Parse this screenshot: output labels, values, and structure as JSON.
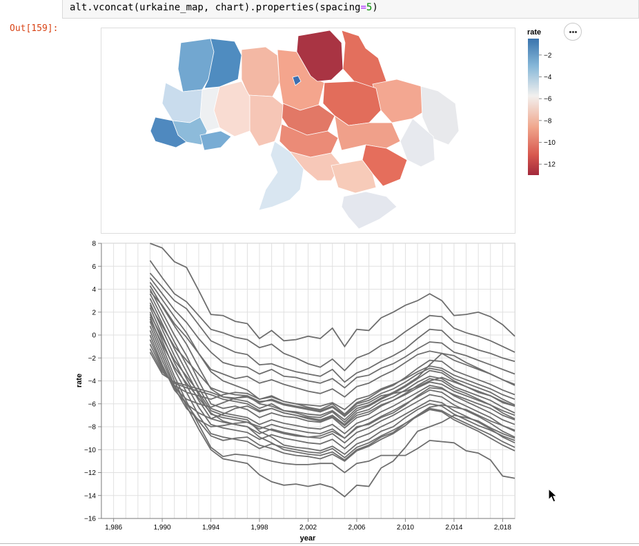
{
  "cell": {
    "code_fn": "alt.vconcat(urkaine_map, chart).properties(spacing",
    "code_eq": "=",
    "code_num": "5",
    "code_end": ")",
    "out_prompt": "Out[159]:"
  },
  "menu": {
    "icon": "ellipsis-icon"
  },
  "colors": {
    "line": "#6e6e6e",
    "grid": "#e0e0e0",
    "axis": "#888888",
    "scale_low": "#a2293b",
    "scale_mid": "#f2f0ee",
    "scale_high": "#3a74ad"
  },
  "map_data": {
    "legend_title": "rate",
    "legend_ticks": [
      "−2",
      "−4",
      "−6",
      "−8",
      "−10",
      "−12"
    ],
    "legend_values": [
      -2,
      -4,
      -6,
      -8,
      -10,
      -12
    ],
    "domain": [
      -13,
      -0.5
    ]
  },
  "chart_data": {
    "type": "line",
    "xlabel": "year",
    "ylabel": "rate",
    "xlim": [
      1985,
      2019
    ],
    "ylim": [
      -16,
      8
    ],
    "x_ticks": [
      "1,986",
      "1,990",
      "1,994",
      "1,998",
      "2,002",
      "2,006",
      "2,010",
      "2,014",
      "2,018"
    ],
    "x_tick_values": [
      1986,
      1990,
      1994,
      1998,
      2002,
      2006,
      2010,
      2014,
      2018
    ],
    "y_ticks": [
      "8",
      "6",
      "4",
      "2",
      "0",
      "−2",
      "−4",
      "−6",
      "−8",
      "−10",
      "−12",
      "−14",
      "−16"
    ],
    "y_tick_values": [
      8,
      6,
      4,
      2,
      0,
      -2,
      -4,
      -6,
      -8,
      -10,
      -12,
      -14,
      -16
    ],
    "x": [
      1989,
      1990,
      1991,
      1992,
      1993,
      1994,
      1995,
      1996,
      1997,
      1998,
      1999,
      2000,
      2001,
      2002,
      2003,
      2004,
      2005,
      2006,
      2007,
      2008,
      2009,
      2010,
      2011,
      2012,
      2013,
      2014,
      2015,
      2016,
      2017,
      2018,
      2019
    ],
    "series": [
      {
        "values": [
          8.0,
          7.6,
          6.4,
          5.9,
          3.9,
          1.8,
          1.7,
          1.2,
          1.0,
          -0.3,
          0.4,
          -0.5,
          -0.4,
          -0.1,
          -0.3,
          0.6,
          -1.0,
          0.5,
          0.4,
          1.5,
          2.0,
          2.6,
          3.0,
          3.6,
          3.0,
          1.7,
          1.8,
          2.0,
          1.6,
          0.9,
          -0.1
        ]
      },
      {
        "values": [
          6.5,
          5.0,
          3.6,
          2.9,
          1.7,
          0.5,
          0.2,
          -0.2,
          -0.4,
          -1.1,
          -0.8,
          -1.6,
          -2.0,
          -2.5,
          -2.8,
          -2.1,
          -3.1,
          -2.0,
          -1.6,
          -0.9,
          -0.5,
          0.3,
          1.0,
          1.7,
          1.6,
          0.6,
          0.2,
          -0.1,
          -0.5,
          -1.0,
          -1.5
        ]
      },
      {
        "values": [
          5.4,
          4.2,
          3.0,
          2.3,
          0.9,
          -0.5,
          -1.0,
          -1.5,
          -1.7,
          -2.6,
          -2.5,
          -2.9,
          -3.2,
          -3.4,
          -3.6,
          -3.0,
          -4.1,
          -3.3,
          -2.9,
          -2.3,
          -1.8,
          -1.2,
          -0.3,
          0.5,
          0.4,
          -0.6,
          -0.9,
          -1.3,
          -1.6,
          -2.0,
          -2.3
        ]
      },
      {
        "values": [
          5.0,
          3.6,
          2.2,
          1.1,
          -0.3,
          -1.5,
          -2.4,
          -2.7,
          -2.8,
          -3.4,
          -3.0,
          -3.6,
          -3.7,
          -4.0,
          -4.2,
          -3.8,
          -4.6,
          -3.7,
          -3.5,
          -2.9,
          -2.5,
          -1.9,
          -1.2,
          -0.6,
          -0.7,
          -1.5,
          -1.8,
          -2.2,
          -2.6,
          -3.0,
          -3.4
        ]
      },
      {
        "values": [
          4.6,
          3.1,
          1.6,
          0.2,
          -1.6,
          -3.2,
          -4.0,
          -4.4,
          -4.8,
          -5.6,
          -5.3,
          -5.8,
          -6.0,
          -6.3,
          -6.5,
          -6.0,
          -6.9,
          -5.9,
          -5.5,
          -4.8,
          -4.4,
          -3.7,
          -2.9,
          -2.2,
          -2.3,
          -3.1,
          -3.5,
          -3.9,
          -4.3,
          -4.8,
          -5.2
        ]
      },
      {
        "values": [
          4.3,
          2.5,
          0.8,
          -0.8,
          -2.8,
          -4.7,
          -5.4,
          -5.6,
          -5.8,
          -6.4,
          -6.0,
          -6.6,
          -6.8,
          -7.1,
          -7.2,
          -6.7,
          -7.6,
          -6.6,
          -6.2,
          -5.6,
          -5.1,
          -4.5,
          -3.8,
          -3.1,
          -3.3,
          -4.0,
          -4.5,
          -5.0,
          -5.3,
          -5.9,
          -6.2
        ]
      },
      {
        "values": [
          4.0,
          2.0,
          0.0,
          -1.8,
          -4.0,
          -6.0,
          -6.4,
          -6.2,
          -6.5,
          -7.2,
          -6.8,
          -7.1,
          -7.2,
          -7.5,
          -7.6,
          -7.2,
          -8.1,
          -7.2,
          -6.9,
          -6.2,
          -5.7,
          -5.1,
          -4.4,
          -3.8,
          -4.0,
          -4.7,
          -5.1,
          -5.6,
          -6.1,
          -6.8,
          -7.3
        ]
      },
      {
        "values": [
          3.6,
          1.5,
          -0.6,
          -2.6,
          -4.6,
          -6.4,
          -6.8,
          -7.0,
          -7.2,
          -7.8,
          -7.4,
          -7.7,
          -7.9,
          -8.1,
          -8.2,
          -7.8,
          -8.6,
          -7.7,
          -7.3,
          -6.7,
          -6.2,
          -5.6,
          -5.0,
          -4.4,
          -4.6,
          -5.3,
          -5.8,
          -6.3,
          -6.8,
          -7.4,
          -7.8
        ]
      },
      {
        "values": [
          3.2,
          1.0,
          -1.2,
          -3.2,
          -5.2,
          -6.9,
          -7.2,
          -7.4,
          -7.6,
          -8.2,
          -7.8,
          -8.1,
          -8.3,
          -8.5,
          -8.6,
          -8.2,
          -9.0,
          -8.1,
          -7.7,
          -7.1,
          -6.6,
          -6.0,
          -5.4,
          -4.8,
          -5.0,
          -5.7,
          -6.2,
          -6.7,
          -7.2,
          -7.9,
          -8.4
        ]
      },
      {
        "values": [
          2.8,
          0.5,
          -1.8,
          -3.8,
          -5.7,
          -7.3,
          -7.6,
          -7.8,
          -8.0,
          -8.6,
          -8.2,
          -8.5,
          -8.7,
          -8.9,
          -9.0,
          -8.6,
          -9.4,
          -8.5,
          -8.1,
          -7.5,
          -7.0,
          -6.4,
          -5.8,
          -5.2,
          -5.4,
          -6.1,
          -6.6,
          -7.1,
          -7.7,
          -8.4,
          -8.9
        ]
      },
      {
        "values": [
          2.4,
          0.0,
          -2.4,
          -4.4,
          -6.3,
          -7.8,
          -8.1,
          -8.3,
          -8.5,
          -9.1,
          -8.7,
          -9.0,
          -9.2,
          -9.4,
          -9.5,
          -9.1,
          -9.9,
          -9.0,
          -8.6,
          -8.0,
          -7.5,
          -6.9,
          -6.3,
          -5.7,
          -5.9,
          -6.6,
          -7.1,
          -7.6,
          -8.2,
          -8.9,
          -9.4
        ]
      },
      {
        "values": [
          2.0,
          -0.5,
          -3.0,
          -5.0,
          -7.0,
          -8.6,
          -8.9,
          -9.1,
          -9.3,
          -9.9,
          -9.5,
          -9.8,
          -10.0,
          -10.2,
          -10.3,
          -9.9,
          -10.7,
          -9.8,
          -9.4,
          -8.8,
          -8.3,
          -7.7,
          -7.1,
          -6.5,
          -6.7,
          -7.4,
          -7.9,
          -8.4,
          -9.0,
          -9.6,
          -10.1
        ]
      },
      {
        "values": [
          1.6,
          -1.0,
          -3.6,
          -5.8,
          -7.8,
          -9.8,
          -10.6,
          -10.4,
          -10.5,
          -10.7,
          -11.0,
          -11.2,
          -11.3,
          -11.3,
          -11.2,
          -11.2,
          -12.0,
          -11.2,
          -11.0,
          -10.5,
          -10.5,
          -10.5,
          -9.9,
          -9.2,
          -9.3,
          -9.4,
          -10.1,
          -10.3,
          -10.9,
          -12.3,
          -12.5
        ]
      },
      {
        "values": [
          1.2,
          -1.4,
          -4.0,
          -6.2,
          -8.2,
          -10.0,
          -10.8,
          -11.0,
          -11.2,
          -12.2,
          -12.8,
          -13.1,
          -13.0,
          -13.2,
          -13.0,
          -13.3,
          -14.1,
          -13.1,
          -13.2,
          -11.6,
          -11.0,
          -9.8,
          -8.4,
          -8.0,
          -7.6,
          -7.0,
          -7.2,
          -7.5,
          -8.1,
          -8.6,
          -9.0
        ]
      },
      {
        "values": [
          0.8,
          -1.8,
          -4.4,
          -6.0,
          -7.5,
          -8.8,
          -9.2,
          -9.0,
          -8.9,
          -9.6,
          -9.9,
          -10.3,
          -10.5,
          -10.6,
          -10.8,
          -10.4,
          -11.0,
          -10.1,
          -9.7,
          -9.1,
          -8.6,
          -7.9,
          -7.0,
          -6.3,
          -6.1,
          -6.3,
          -6.5,
          -7.0,
          -7.5,
          -7.9,
          -8.3
        ]
      },
      {
        "values": [
          0.4,
          -2.2,
          -4.6,
          -6.4,
          -7.4,
          -8.0,
          -7.9,
          -7.7,
          -7.6,
          -8.0,
          -8.3,
          -8.6,
          -8.8,
          -8.9,
          -8.8,
          -8.4,
          -9.0,
          -8.0,
          -7.8,
          -7.2,
          -6.8,
          -6.1,
          -5.3,
          -4.6,
          -4.7,
          -5.2,
          -5.6,
          -6.0,
          -6.4,
          -7.0,
          -7.4
        ]
      },
      {
        "values": [
          0.0,
          -2.6,
          -4.8,
          -6.0,
          -6.8,
          -7.3,
          -6.9,
          -6.4,
          -6.2,
          -6.7,
          -6.4,
          -6.8,
          -7.0,
          -7.2,
          -7.4,
          -7.0,
          -7.8,
          -6.8,
          -6.5,
          -5.8,
          -5.4,
          -4.8,
          -4.1,
          -3.6,
          -3.8,
          -4.5,
          -4.9,
          -5.3,
          -5.7,
          -6.3,
          -6.8
        ]
      },
      {
        "values": [
          -0.4,
          -2.8,
          -4.6,
          -5.6,
          -6.0,
          -6.3,
          -5.9,
          -5.5,
          -5.4,
          -5.9,
          -5.6,
          -6.0,
          -6.2,
          -6.4,
          -6.6,
          -6.2,
          -7.0,
          -6.0,
          -5.7,
          -5.1,
          -4.7,
          -4.1,
          -3.4,
          -2.9,
          -3.1,
          -3.8,
          -4.2,
          -4.6,
          -5.0,
          -5.6,
          -6.1
        ]
      },
      {
        "values": [
          -0.8,
          -3.0,
          -4.4,
          -5.0,
          -5.3,
          -5.6,
          -5.2,
          -5.0,
          -5.1,
          -5.6,
          -5.4,
          -5.8,
          -6.0,
          -6.1,
          -6.2,
          -5.9,
          -6.5,
          -5.6,
          -5.3,
          -4.7,
          -4.3,
          -3.8,
          -3.2,
          -2.7,
          -2.9,
          -3.5,
          -3.9,
          -4.3,
          -4.7,
          -5.2,
          -5.6
        ]
      },
      {
        "values": [
          -1.2,
          -3.2,
          -4.2,
          -4.6,
          -4.9,
          -5.2,
          -5.6,
          -5.8,
          -6.0,
          -6.6,
          -6.4,
          -6.8,
          -7.0,
          -7.3,
          -7.5,
          -7.1,
          -7.9,
          -7.0,
          -6.7,
          -6.1,
          -5.7,
          -5.2,
          -4.6,
          -4.1,
          -4.3,
          -4.9,
          -5.3,
          -5.7,
          -6.1,
          -6.6,
          -7.0
        ]
      },
      {
        "values": [
          -1.5,
          -3.4,
          -4.1,
          -4.4,
          -4.7,
          -5.0,
          -5.4,
          -5.5,
          -5.3,
          -5.8,
          -5.7,
          -6.1,
          -6.3,
          -6.5,
          -6.7,
          -6.3,
          -7.1,
          -6.2,
          -5.9,
          -5.3,
          -5.1,
          -4.9,
          -4.5,
          -4.0,
          -3.7,
          -4.1,
          -4.5,
          -4.9,
          -5.3,
          -5.8,
          -6.2
        ]
      },
      {
        "values": [
          1.8,
          -0.2,
          -2.2,
          -3.6,
          -5.0,
          -6.6,
          -7.0,
          -7.2,
          -7.4,
          -8.4,
          -8.9,
          -9.6,
          -9.8,
          -9.9,
          -10.1,
          -9.7,
          -10.4,
          -9.5,
          -9.1,
          -8.4,
          -8.0,
          -7.2,
          -6.5,
          -6.0,
          -6.2,
          -6.9,
          -7.4,
          -7.9,
          -8.3,
          -8.8,
          -9.2
        ]
      },
      {
        "values": [
          2.6,
          0.8,
          -1.0,
          -2.2,
          -3.4,
          -4.6,
          -5.0,
          -5.2,
          -5.3,
          -6.0,
          -6.2,
          -6.6,
          -6.7,
          -6.9,
          -7.0,
          -6.6,
          -7.4,
          -6.4,
          -6.1,
          -5.5,
          -5.0,
          -4.4,
          -3.7,
          -2.6,
          -1.6,
          -1.8,
          -2.4,
          -2.9,
          -3.4,
          -3.9,
          -4.3
        ]
      },
      {
        "values": [
          1.4,
          -0.8,
          -2.8,
          -4.2,
          -5.5,
          -6.8,
          -7.5,
          -7.8,
          -8.0,
          -8.9,
          -9.4,
          -10.0,
          -10.2,
          -10.4,
          -10.5,
          -10.2,
          -10.9,
          -10.0,
          -9.6,
          -8.9,
          -8.5,
          -7.7,
          -7.0,
          -6.4,
          -6.6,
          -7.2,
          -7.7,
          -8.2,
          -8.7,
          -9.3,
          -9.8
        ]
      },
      {
        "values": [
          3.8,
          2.6,
          1.0,
          -0.2,
          -1.6,
          -3.0,
          -3.4,
          -3.8,
          -3.6,
          -4.2,
          -3.9,
          -4.3,
          -4.6,
          -4.9,
          -5.1,
          -4.7,
          -5.4,
          -4.5,
          -4.2,
          -3.6,
          -3.1,
          -2.4,
          -1.7,
          -1.4,
          -1.6,
          -2.2,
          -2.6,
          -3.0,
          -3.4,
          -3.9,
          -4.4
        ]
      }
    ]
  }
}
